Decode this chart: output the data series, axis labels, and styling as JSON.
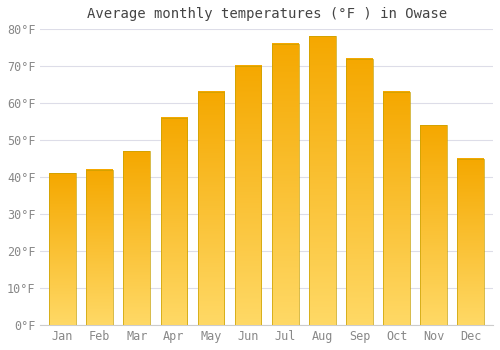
{
  "title": "Average monthly temperatures (°F ) in Owase",
  "months": [
    "Jan",
    "Feb",
    "Mar",
    "Apr",
    "May",
    "Jun",
    "Jul",
    "Aug",
    "Sep",
    "Oct",
    "Nov",
    "Dec"
  ],
  "values": [
    41,
    42,
    47,
    56,
    63,
    70,
    76,
    78,
    72,
    63,
    54,
    45
  ],
  "bar_color_dark": "#F5A800",
  "bar_color_light": "#FFD966",
  "bar_edge_color": "#C8A000",
  "ylim": [
    0,
    80
  ],
  "yticks": [
    0,
    10,
    20,
    30,
    40,
    50,
    60,
    70,
    80
  ],
  "ytick_labels": [
    "0°F",
    "10°F",
    "20°F",
    "30°F",
    "40°F",
    "50°F",
    "60°F",
    "70°F",
    "80°F"
  ],
  "background_color": "#FFFFFF",
  "plot_bg_color": "#FFFFFF",
  "grid_color": "#DDDDE8",
  "title_fontsize": 10,
  "tick_fontsize": 8.5,
  "tick_color": "#888888",
  "title_color": "#444444"
}
